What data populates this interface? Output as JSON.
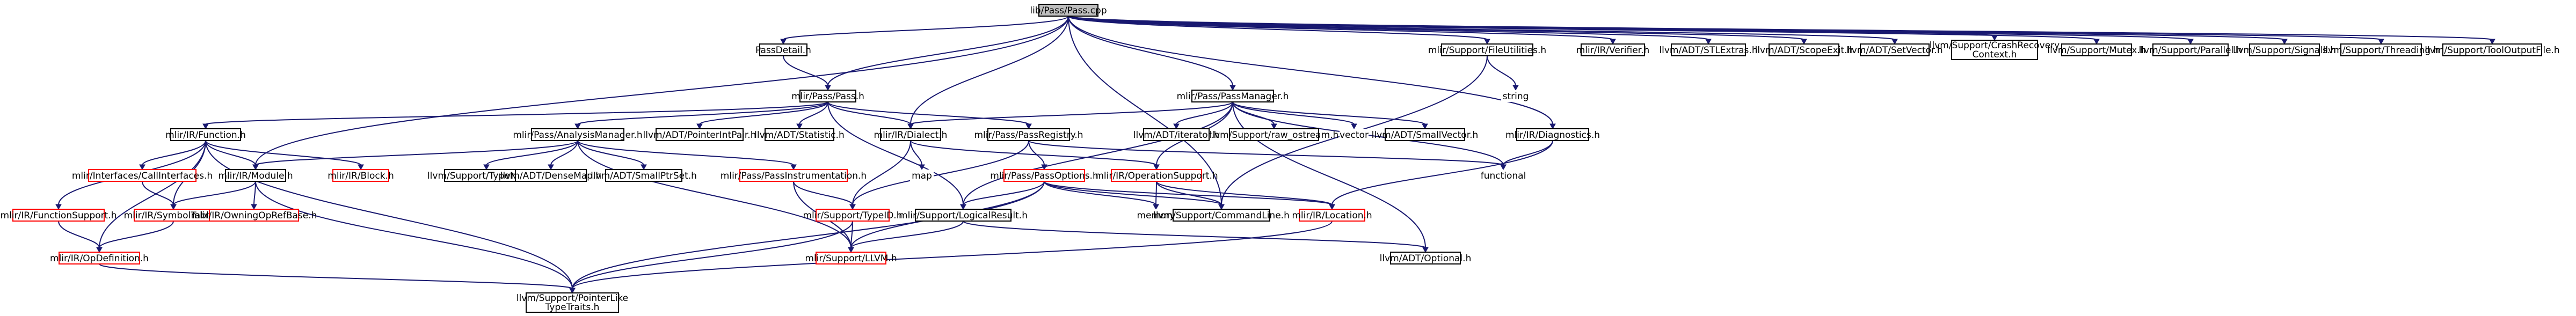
{
  "colors": {
    "edge": "#191970",
    "node_border_normal": "#000000",
    "node_border_truncated": "#ff0000",
    "root_fill": "#bfbfbf",
    "node_fill": "#ffffff"
  },
  "nodes": [
    {
      "id": "root",
      "label": "lib/Pass/Pass.cpp",
      "kind": "root"
    },
    {
      "id": "passdetail",
      "label": "PassDetail.h",
      "kind": "normal"
    },
    {
      "id": "filelines",
      "label": "mlir/Support/FileUtilities.h",
      "kind": "normal"
    },
    {
      "id": "verifier",
      "label": "mlir/IR/Verifier.h",
      "kind": "normal"
    },
    {
      "id": "stlextras",
      "label": "llvm/ADT/STLExtras.h",
      "kind": "normal"
    },
    {
      "id": "scopeexit",
      "label": "llvm/ADT/ScopeExit.h",
      "kind": "normal"
    },
    {
      "id": "setvector",
      "label": "llvm/ADT/SetVector.h",
      "kind": "normal"
    },
    {
      "id": "crashrecovery",
      "label": [
        "llvm/Support/CrashRecovery",
        "Context.h"
      ],
      "kind": "normal"
    },
    {
      "id": "mutex",
      "label": "llvm/Support/Mutex.h",
      "kind": "normal"
    },
    {
      "id": "parallel",
      "label": "llvm/Support/Parallel.h",
      "kind": "normal"
    },
    {
      "id": "signals",
      "label": "llvm/Support/Signals.h",
      "kind": "normal"
    },
    {
      "id": "threading",
      "label": "llvm/Support/Threading.h",
      "kind": "normal"
    },
    {
      "id": "tooloutput",
      "label": "llvm/Support/ToolOutputFile.h",
      "kind": "normal"
    },
    {
      "id": "pass",
      "label": "mlir/Pass/Pass.h",
      "kind": "normal"
    },
    {
      "id": "passmanager",
      "label": "mlir/Pass/PassManager.h",
      "kind": "normal"
    },
    {
      "id": "string",
      "label": "string",
      "kind": "plain"
    },
    {
      "id": "diagnostics",
      "label": "mlir/IR/Diagnostics.h",
      "kind": "normal"
    },
    {
      "id": "function",
      "label": "mlir/IR/Function.h",
      "kind": "normal"
    },
    {
      "id": "analysismanager",
      "label": "mlir/Pass/AnalysisManager.h",
      "kind": "normal"
    },
    {
      "id": "pointerintpair",
      "label": "llvm/ADT/PointerIntPair.h",
      "kind": "normal"
    },
    {
      "id": "statistic",
      "label": "llvm/ADT/Statistic.h",
      "kind": "normal"
    },
    {
      "id": "dialect",
      "label": "mlir/IR/Dialect.h",
      "kind": "normal"
    },
    {
      "id": "passregistry",
      "label": "mlir/Pass/PassRegistry.h",
      "kind": "normal"
    },
    {
      "id": "iterator",
      "label": "llvm/ADT/iterator.h",
      "kind": "normal"
    },
    {
      "id": "rawostream",
      "label": "llvm/Support/raw_ostream.h",
      "kind": "normal"
    },
    {
      "id": "vector",
      "label": "vector",
      "kind": "plain"
    },
    {
      "id": "smallvector",
      "label": "llvm/ADT/SmallVector.h",
      "kind": "normal"
    },
    {
      "id": "functional",
      "label": "functional",
      "kind": "plain"
    },
    {
      "id": "callinterfaces",
      "label": "mlir/Interfaces/CallInterfaces.h",
      "kind": "truncated"
    },
    {
      "id": "module",
      "label": "mlir/IR/Module.h",
      "kind": "normal"
    },
    {
      "id": "block",
      "label": "mlir/IR/Block.h",
      "kind": "truncated"
    },
    {
      "id": "typename",
      "label": "llvm/Support/TypeName.h",
      "kind": "normal"
    },
    {
      "id": "densemap",
      "label": "llvm/ADT/DenseMap.h",
      "kind": "normal"
    },
    {
      "id": "smallptrset",
      "label": "llvm/ADT/SmallPtrSet.h",
      "kind": "normal"
    },
    {
      "id": "passinstrumentation",
      "label": "mlir/Pass/PassInstrumentation.h",
      "kind": "truncated"
    },
    {
      "id": "map",
      "label": "map",
      "kind": "plain"
    },
    {
      "id": "passoptions",
      "label": "mlir/Pass/PassOptions.h",
      "kind": "truncated"
    },
    {
      "id": "operationsupport",
      "label": "mlir/IR/OperationSupport.h",
      "kind": "truncated"
    },
    {
      "id": "functionsupport",
      "label": "mlir/IR/FunctionSupport.h",
      "kind": "truncated"
    },
    {
      "id": "symboltable",
      "label": "mlir/IR/SymbolTable.h",
      "kind": "truncated"
    },
    {
      "id": "owningopref",
      "label": "mlir/IR/OwningOpRefBase.h",
      "kind": "truncated"
    },
    {
      "id": "typeid",
      "label": "mlir/Support/TypeID.h",
      "kind": "truncated"
    },
    {
      "id": "logicalresult",
      "label": "mlir/Support/LogicalResult.h",
      "kind": "normal"
    },
    {
      "id": "memory",
      "label": "memory",
      "kind": "plain"
    },
    {
      "id": "commandline",
      "label": "llvm/Support/CommandLine.h",
      "kind": "normal"
    },
    {
      "id": "location",
      "label": "mlir/IR/Location.h",
      "kind": "truncated"
    },
    {
      "id": "opdefinition",
      "label": "mlir/IR/OpDefinition.h",
      "kind": "truncated"
    },
    {
      "id": "llvm",
      "label": "mlir/Support/LLVM.h",
      "kind": "truncated"
    },
    {
      "id": "optional",
      "label": "llvm/ADT/Optional.h",
      "kind": "normal"
    },
    {
      "id": "pointerliketypetraits",
      "label": [
        "llvm/Support/PointerLike",
        "TypeTraits.h"
      ],
      "kind": "normal"
    }
  ],
  "edges": [
    [
      "root",
      "passdetail"
    ],
    [
      "root",
      "filelines"
    ],
    [
      "root",
      "verifier"
    ],
    [
      "root",
      "stlextras"
    ],
    [
      "root",
      "scopeexit"
    ],
    [
      "root",
      "setvector"
    ],
    [
      "root",
      "crashrecovery"
    ],
    [
      "root",
      "mutex"
    ],
    [
      "root",
      "parallel"
    ],
    [
      "root",
      "signals"
    ],
    [
      "root",
      "threading"
    ],
    [
      "root",
      "tooloutput"
    ],
    [
      "root",
      "pass"
    ],
    [
      "root",
      "passmanager"
    ],
    [
      "root",
      "diagnostics"
    ],
    [
      "root",
      "dialect"
    ],
    [
      "root",
      "module"
    ],
    [
      "root",
      "commandline"
    ],
    [
      "passdetail",
      "pass"
    ],
    [
      "filelines",
      "string"
    ],
    [
      "filelines",
      "commandline"
    ],
    [
      "pass",
      "function"
    ],
    [
      "pass",
      "analysismanager"
    ],
    [
      "pass",
      "pointerintpair"
    ],
    [
      "pass",
      "statistic"
    ],
    [
      "pass",
      "dialect"
    ],
    [
      "pass",
      "passregistry"
    ],
    [
      "pass",
      "logicalresult"
    ],
    [
      "passmanager",
      "dialect"
    ],
    [
      "passmanager",
      "iterator"
    ],
    [
      "passmanager",
      "rawostream"
    ],
    [
      "passmanager",
      "vector"
    ],
    [
      "passmanager",
      "smallvector"
    ],
    [
      "passmanager",
      "functional"
    ],
    [
      "passmanager",
      "logicalresult"
    ],
    [
      "passmanager",
      "optional"
    ],
    [
      "passmanager",
      "operationsupport"
    ],
    [
      "diagnostics",
      "functional"
    ],
    [
      "diagnostics",
      "location"
    ],
    [
      "function",
      "callinterfaces"
    ],
    [
      "function",
      "functionsupport"
    ],
    [
      "function",
      "symboltable"
    ],
    [
      "function",
      "opdefinition"
    ],
    [
      "function",
      "block"
    ],
    [
      "function",
      "module"
    ],
    [
      "function",
      "pointerliketypetraits"
    ],
    [
      "analysismanager",
      "module"
    ],
    [
      "analysismanager",
      "typename"
    ],
    [
      "analysismanager",
      "densemap"
    ],
    [
      "analysismanager",
      "smallptrset"
    ],
    [
      "analysismanager",
      "passinstrumentation"
    ],
    [
      "analysismanager",
      "llvm"
    ],
    [
      "dialect",
      "map"
    ],
    [
      "dialect",
      "typeid"
    ],
    [
      "dialect",
      "operationsupport"
    ],
    [
      "passregistry",
      "passoptions"
    ],
    [
      "passregistry",
      "typeid"
    ],
    [
      "passregistry",
      "functional"
    ],
    [
      "passoptions",
      "logicalresult"
    ],
    [
      "passoptions",
      "memory"
    ],
    [
      "passoptions",
      "commandline"
    ],
    [
      "passoptions",
      "location"
    ],
    [
      "passoptions",
      "llvm"
    ],
    [
      "passoptions",
      "pointerliketypetraits"
    ],
    [
      "operationsupport",
      "memory"
    ],
    [
      "operationsupport",
      "commandline"
    ],
    [
      "operationsupport",
      "location"
    ],
    [
      "callinterfaces",
      "symboltable"
    ],
    [
      "module",
      "symboltable"
    ],
    [
      "module",
      "owningopref"
    ],
    [
      "module",
      "pointerliketypetraits"
    ],
    [
      "passinstrumentation",
      "typeid"
    ],
    [
      "passinstrumentation",
      "llvm"
    ],
    [
      "functionsupport",
      "opdefinition"
    ],
    [
      "symboltable",
      "opdefinition"
    ],
    [
      "typeid",
      "llvm"
    ],
    [
      "typeid",
      "pointerliketypetraits"
    ],
    [
      "logicalresult",
      "llvm"
    ],
    [
      "logicalresult",
      "optional"
    ],
    [
      "location",
      "pointerliketypetraits"
    ],
    [
      "opdefinition",
      "pointerliketypetraits"
    ]
  ]
}
